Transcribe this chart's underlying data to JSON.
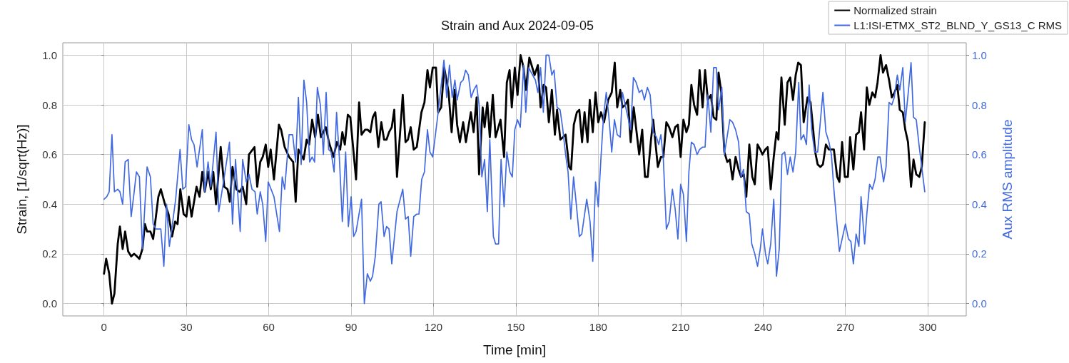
{
  "chart_data": {
    "type": "line",
    "title": "Strain and Aux 2024-09-05",
    "xlabel": "Time [min]",
    "ylabel": "Strain, [1/sqrt(Hz)]",
    "y2label": "Aux RMS amplitude",
    "xlim": [
      -15,
      314
    ],
    "xticks": [
      0,
      30,
      60,
      90,
      120,
      150,
      180,
      210,
      240,
      270,
      300
    ],
    "ylim": [
      -0.05,
      1.05
    ],
    "yticks": [
      {
        "value": 0,
        "label": "0.0"
      },
      0.2,
      0.4,
      0.6,
      0.8,
      {
        "value": 1,
        "label": "1.0"
      }
    ],
    "y2lim": [
      -0.05,
      1.05
    ],
    "y2ticks": [
      {
        "value": 0,
        "label": "0.0"
      },
      0.2,
      0.4,
      0.6,
      0.8,
      {
        "value": 1,
        "label": "1.0"
      }
    ],
    "grid": true,
    "legend": "top right",
    "marker": "none",
    "line_style": "solid",
    "series": [
      {
        "name": "Normalized strain",
        "color": "#000000",
        "x": [
          0,
          0.8,
          1.9,
          2.9,
          3.8,
          5,
          5.8,
          6.8,
          7.7,
          8.8,
          9.9,
          11,
          12,
          12.9,
          14,
          14.9,
          15.7,
          16.9,
          17.9,
          19.8,
          20.7,
          22.2,
          23.5,
          24.8,
          25.9,
          26.8,
          27.8,
          29,
          30,
          30.9,
          31.9,
          33.7,
          34.8,
          35.8,
          36.7,
          37.9,
          38.9,
          39.8,
          40.8,
          42.5,
          43.8,
          45,
          45.8,
          46.8,
          48.2,
          49.4,
          50.5,
          51.8,
          52.8,
          54.8,
          55.8,
          56.9,
          57.8,
          58.9,
          59.8,
          60.7,
          61.9,
          63.7,
          64.5,
          65.8,
          67.4,
          68.9,
          69.8,
          70.8,
          72.7,
          73.8,
          74.7,
          75.8,
          76.9,
          77.9,
          79,
          80.8,
          81.9,
          83.6,
          84.8,
          86,
          86.8,
          87.7,
          88.8,
          89.7,
          91.8,
          92.9,
          93.8,
          95.1,
          96,
          97,
          97.9,
          98.8,
          99.9,
          101,
          102,
          102.9,
          103.8,
          104.8,
          105.7,
          106.7,
          108.8,
          109.8,
          110.7,
          111.7,
          112.8,
          113.9,
          115.6,
          116.7,
          117.8,
          118.7,
          119.7,
          120.9,
          121.7,
          122.8,
          123.9,
          125.5,
          126.6,
          127.7,
          128.6,
          129.6,
          130.8,
          131.8,
          133.6,
          134.6,
          135.7,
          136.6,
          137.9,
          138.6,
          139.6,
          140.5,
          141.6,
          142.6,
          144.4,
          145.7,
          146.7,
          147.7,
          148.5,
          149.6,
          150.6,
          151.7,
          152.8,
          153.6,
          154.9,
          156.8,
          158,
          159,
          160.1,
          161,
          162,
          163.1,
          164.2,
          165,
          166.2,
          167.2,
          168.1,
          169.4,
          170.1,
          171.1,
          172.2,
          173.1,
          174.1,
          175,
          176.1,
          176.9,
          178,
          179,
          180,
          181,
          182.1,
          183.6,
          184.9,
          186,
          186.9,
          188,
          188.8,
          189.8,
          190.8,
          191.8,
          192.9,
          194.9,
          196,
          197,
          198,
          199.2,
          200,
          201.7,
          202.8,
          203.7,
          204.8,
          205.8,
          207,
          208,
          209,
          210,
          211,
          212.1,
          213,
          213.9,
          214.9,
          216,
          216.9,
          218,
          218.9,
          219.9,
          221,
          222,
          223,
          223.8,
          224.8,
          225.9,
          227,
          227.9,
          228.9,
          230,
          231.1,
          232,
          233,
          233.9,
          235,
          236.1,
          237,
          238,
          239,
          239.8,
          240.8,
          241.7,
          242.8,
          243.9,
          244.9,
          245.6,
          246.7,
          247.9,
          248.9,
          249.9,
          250.9,
          251.9,
          252.8,
          253.8,
          254.8,
          256.2,
          257.3,
          258.1,
          259,
          259.9,
          260.9,
          261.8,
          262.9,
          264,
          265.8,
          267,
          267.8,
          268.8,
          269.8,
          270.9,
          271.7,
          272.9,
          273.9,
          274.9,
          275.7,
          276.8,
          277.8,
          278.7,
          279.8,
          280.8,
          281.7,
          282.8,
          283.7,
          284.8,
          285.9,
          286.9,
          287.9,
          288.9,
          289.8,
          290.9,
          291.8,
          292.8,
          293.9,
          294.8,
          295.8,
          296.9,
          297.8,
          298.9
        ],
        "values": [
          0.12,
          0.18,
          0.12,
          0.0,
          0.04,
          0.24,
          0.31,
          0.22,
          0.29,
          0.21,
          0.19,
          0.2,
          0.19,
          0.18,
          0.22,
          0.32,
          0.29,
          0.29,
          0.26,
          0.43,
          0.46,
          0.4,
          0.36,
          0.27,
          0.33,
          0.32,
          0.46,
          0.36,
          0.35,
          0.43,
          0.35,
          0.47,
          0.43,
          0.53,
          0.45,
          0.53,
          0.46,
          0.53,
          0.4,
          0.63,
          0.47,
          0.46,
          0.41,
          0.55,
          0.46,
          0.45,
          0.47,
          0.4,
          0.6,
          0.63,
          0.47,
          0.57,
          0.59,
          0.64,
          0.55,
          0.62,
          0.5,
          0.72,
          0.7,
          0.63,
          0.59,
          0.57,
          0.41,
          0.62,
          0.58,
          0.66,
          0.64,
          0.74,
          0.67,
          0.76,
          0.67,
          0.71,
          0.65,
          0.59,
          0.65,
          0.62,
          0.69,
          0.64,
          0.76,
          0.75,
          0.5,
          0.81,
          0.68,
          0.7,
          0.7,
          0.69,
          0.75,
          0.77,
          0.63,
          0.73,
          0.66,
          0.66,
          0.69,
          0.71,
          0.78,
          0.51,
          0.84,
          0.65,
          0.66,
          0.71,
          0.62,
          0.63,
          0.77,
          0.81,
          0.94,
          0.87,
          0.95,
          0.95,
          0.77,
          0.79,
          0.95,
          0.85,
          0.69,
          0.86,
          0.72,
          0.65,
          0.73,
          0.65,
          0.77,
          0.69,
          0.83,
          0.52,
          0.79,
          0.71,
          0.81,
          0.67,
          0.84,
          0.67,
          0.74,
          0.59,
          0.89,
          0.94,
          0.79,
          0.95,
          0.84,
          1.0,
          0.95,
          0.86,
          0.99,
          0.92,
          0.96,
          0.79,
          0.88,
          0.87,
          0.73,
          0.86,
          0.68,
          0.78,
          0.66,
          0.67,
          0.68,
          0.55,
          0.54,
          0.72,
          0.77,
          0.78,
          0.65,
          0.77,
          0.65,
          0.82,
          0.69,
          0.85,
          0.73,
          0.77,
          0.73,
          0.82,
          0.85,
          0.97,
          0.79,
          0.86,
          0.79,
          0.8,
          0.82,
          0.65,
          0.79,
          0.6,
          0.7,
          0.51,
          0.51,
          0.66,
          0.74,
          0.55,
          0.59,
          0.59,
          0.73,
          0.71,
          0.67,
          0.71,
          0.72,
          0.59,
          0.74,
          0.69,
          0.72,
          0.88,
          0.8,
          0.76,
          0.94,
          0.79,
          0.94,
          0.82,
          0.84,
          0.75,
          0.74,
          0.93,
          0.85,
          0.61,
          0.57,
          0.58,
          0.5,
          0.59,
          0.54,
          0.51,
          0.52,
          0.43,
          0.64,
          0.51,
          0.48,
          0.64,
          0.62,
          0.6,
          0.62,
          0.63,
          0.46,
          0.59,
          0.69,
          0.66,
          0.91,
          0.72,
          0.89,
          0.91,
          0.82,
          0.92,
          0.97,
          0.96,
          0.73,
          0.83,
          0.81,
          0.72,
          0.61,
          0.56,
          0.55,
          0.56,
          0.64,
          0.62,
          0.62,
          0.51,
          0.49,
          0.65,
          0.51,
          0.51,
          0.67,
          0.54,
          0.68,
          0.69,
          0.77,
          0.62,
          0.87,
          0.8,
          0.85,
          0.83,
          0.89,
          1.0,
          0.93,
          0.96,
          0.9,
          0.83,
          0.85,
          0.88,
          0.78,
          0.77,
          0.7,
          0.65,
          0.47,
          0.58,
          0.52,
          0.51,
          0.55,
          0.73
        ]
      },
      {
        "name": "L1:ISI-ETMX_ST2_BLND_Y_GS13_C RMS",
        "color": "#4169e1",
        "axis": "y2",
        "x": [
          0,
          1,
          1.9,
          2.9,
          3.8,
          5,
          5.8,
          6.8,
          7.7,
          8.8,
          9.9,
          11,
          11.8,
          12.9,
          14,
          15.7,
          16.9,
          17.9,
          18.9,
          19.8,
          20.7,
          21.8,
          22.8,
          23.8,
          24.8,
          26.1,
          27.7,
          28.7,
          29.7,
          30.9,
          31.9,
          32.8,
          33.9,
          35.8,
          36.7,
          37.9,
          38.9,
          40.8,
          41.8,
          43.8,
          45.7,
          46.8,
          47.9,
          49.6,
          50.5,
          51.8,
          52.8,
          53.9,
          55,
          55.8,
          56.9,
          57.8,
          58.9,
          59.8,
          61.9,
          63.9,
          64.9,
          65.8,
          67.4,
          68.7,
          69.8,
          70.8,
          71.8,
          72.8,
          73.8,
          74.9,
          75.8,
          76.7,
          77.7,
          78.8,
          79.9,
          80.9,
          81.8,
          82.7,
          83.8,
          84.7,
          85.7,
          86.8,
          88,
          89,
          90,
          90.9,
          91.8,
          93.8,
          94.8,
          95.9,
          97,
          97.8,
          98.8,
          100.1,
          100.9,
          102,
          102.9,
          103.8,
          104.8,
          106.7,
          108.8,
          109.8,
          110.8,
          111.7,
          112.8,
          113.9,
          114.7,
          115.7,
          116.7,
          117.8,
          118.7,
          119.7,
          121.7,
          123.8,
          124.8,
          125.8,
          126.8,
          127.8,
          128.6,
          129.9,
          130.8,
          131.7,
          132.7,
          133.7,
          134.7,
          135.7,
          136.6,
          137.6,
          138.6,
          139.6,
          140.5,
          141.8,
          142.6,
          143.7,
          144.6,
          145.7,
          146.7,
          147.8,
          148.7,
          149.6,
          150.6,
          151.6,
          152.8,
          153.6,
          154.7,
          155.6,
          157.1,
          158,
          159,
          160,
          161,
          162,
          163.1,
          163.9,
          165,
          166.1,
          167,
          168.1,
          169,
          170,
          171,
          172,
          173.1,
          174,
          175.8,
          177,
          178,
          179,
          180,
          181,
          181.9,
          182.9,
          183.8,
          184.9,
          185.9,
          186.9,
          188,
          188.8,
          189.8,
          190.8,
          191.8,
          192.8,
          193.8,
          194.9,
          195.9,
          196.8,
          197.9,
          198.9,
          200,
          201.2,
          202,
          202.8,
          203.7,
          204.8,
          205.8,
          207,
          208,
          209,
          210,
          211,
          212.1,
          213,
          213.9,
          214.9,
          216,
          216.9,
          218,
          218.9,
          219.9,
          221,
          222,
          223,
          223.8,
          225,
          225.9,
          227.9,
          228.9,
          230,
          231.1,
          232,
          232.9,
          233.9,
          235,
          235.9,
          237,
          238,
          239,
          239.8,
          240.9,
          241.7,
          242.8,
          243.9,
          244.9,
          245.9,
          246.9,
          247.9,
          248.9,
          249.9,
          250.9,
          251.9,
          253,
          253.8,
          254.8,
          255.8,
          256.8,
          257.7,
          258.8,
          259.9,
          261.8,
          262.9,
          264,
          264.9,
          265.8,
          267.8,
          270,
          271.1,
          272,
          272.9,
          273.9,
          274.9,
          275.7,
          277,
          277.8,
          278.8,
          279.8,
          280.8,
          281.8,
          282.6,
          283.9,
          284.8,
          285.9,
          286.9,
          287.8,
          288.9,
          289.8,
          290.9,
          291.8,
          292.8,
          293.9,
          294.8,
          295.8,
          296.9,
          297.8,
          298.9
        ],
        "values": [
          0.42,
          0.43,
          0.45,
          0.68,
          0.45,
          0.46,
          0.45,
          0.4,
          0.57,
          0.58,
          0.35,
          0.45,
          0.53,
          0.51,
          0.22,
          0.55,
          0.51,
          0.32,
          0.3,
          0.3,
          0.3,
          0.15,
          0.4,
          0.23,
          0.31,
          0.42,
          0.62,
          0.46,
          0.47,
          0.72,
          0.66,
          0.64,
          0.55,
          0.7,
          0.45,
          0.57,
          0.47,
          0.69,
          0.37,
          0.51,
          0.65,
          0.32,
          0.58,
          0.29,
          0.58,
          0.49,
          0.52,
          0.46,
          0.45,
          0.36,
          0.45,
          0.4,
          0.25,
          0.49,
          0.43,
          0.29,
          0.51,
          0.46,
          0.68,
          0.68,
          0.57,
          0.83,
          0.56,
          0.9,
          0.81,
          0.57,
          0.59,
          0.57,
          0.87,
          0.8,
          0.6,
          0.85,
          0.62,
          0.61,
          0.53,
          0.77,
          0.59,
          0.33,
          0.61,
          0.31,
          0.43,
          0.27,
          0.29,
          0.42,
          0.0,
          0.12,
          0.09,
          0.11,
          0.19,
          0.4,
          0.41,
          0.27,
          0.31,
          0.3,
          0.16,
          0.37,
          0.46,
          0.34,
          0.35,
          0.19,
          0.35,
          0.36,
          0.36,
          0.5,
          0.53,
          0.7,
          0.61,
          0.59,
          0.77,
          0.98,
          0.83,
          0.96,
          0.83,
          0.9,
          0.82,
          0.89,
          0.9,
          0.94,
          0.92,
          0.83,
          0.86,
          0.88,
          0.8,
          0.51,
          0.58,
          0.37,
          0.66,
          0.27,
          0.24,
          0.24,
          0.58,
          0.39,
          0.61,
          0.53,
          0.51,
          0.7,
          0.74,
          0.71,
          0.96,
          0.77,
          0.95,
          0.93,
          0.9,
          0.85,
          0.95,
          0.77,
          1.0,
          1.0,
          0.92,
          0.94,
          0.79,
          0.78,
          0.71,
          0.6,
          0.53,
          0.34,
          0.51,
          0.4,
          0.27,
          0.28,
          0.42,
          0.33,
          0.17,
          0.49,
          0.39,
          0.59,
          0.75,
          0.85,
          0.76,
          0.61,
          0.74,
          0.68,
          0.67,
          0.85,
          0.8,
          0.75,
          0.7,
          0.91,
          0.89,
          0.85,
          0.86,
          0.82,
          0.87,
          0.84,
          0.69,
          0.67,
          0.64,
          0.68,
          0.58,
          0.3,
          0.33,
          0.46,
          0.38,
          0.26,
          0.48,
          0.44,
          0.25,
          0.53,
          0.65,
          0.64,
          0.6,
          0.62,
          0.63,
          0.63,
          0.84,
          0.69,
          0.95,
          0.95,
          0.78,
          0.87,
          0.6,
          0.74,
          0.73,
          0.7,
          0.65,
          0.51,
          0.54,
          0.37,
          0.36,
          0.24,
          0.2,
          0.15,
          0.22,
          0.3,
          0.2,
          0.16,
          0.24,
          0.42,
          0.11,
          0.22,
          0.6,
          0.61,
          0.52,
          0.59,
          0.53,
          0.61,
          0.89,
          0.66,
          0.68,
          0.64,
          0.88,
          0.7,
          0.61,
          0.61,
          0.85,
          0.69,
          0.65,
          0.6,
          0.46,
          0.21,
          0.32,
          0.26,
          0.25,
          0.16,
          0.28,
          0.23,
          0.43,
          0.24,
          0.36,
          0.48,
          0.46,
          0.5,
          0.59,
          0.59,
          0.49,
          0.55,
          0.81,
          0.8,
          0.83,
          0.92,
          0.86,
          0.95,
          0.73,
          0.84,
          0.97,
          0.75,
          0.74,
          0.63,
          0.55,
          0.45
        ]
      }
    ]
  }
}
